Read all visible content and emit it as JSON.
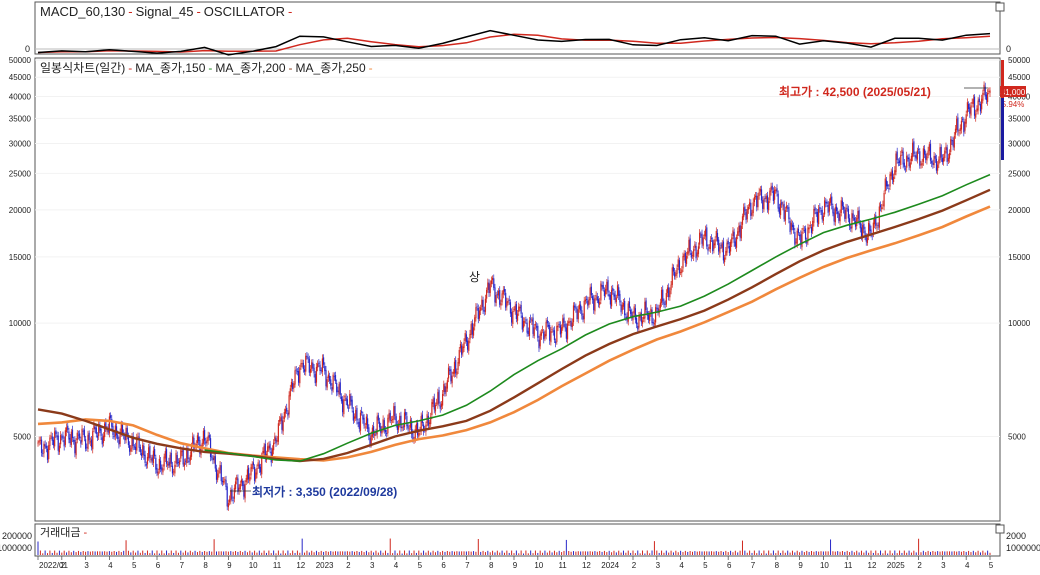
{
  "macd_panel": {
    "title_parts": [
      "MACD_60,130",
      "Signal_45",
      "OSCILLATOR"
    ],
    "zero_label": "0",
    "colors": {
      "macd": "#000000",
      "signal": "#d0281e"
    }
  },
  "price_panel": {
    "title_parts": [
      "일봉식차트(일간)",
      "MA_종가,150",
      "MA_종가,200",
      "MA_종가,250"
    ],
    "high_annotation": "최고가 : 42,500 (2025/05/21)",
    "low_annotation": "최저가 : 3,350 (2022/09/28)",
    "event_marker": "상",
    "current_price_label": "41,000",
    "change_label": "5.94%",
    "colors": {
      "up": "#d0281e",
      "down": "#2828c8",
      "ma150": "#1d8a1d",
      "ma200": "#8b3a1a",
      "ma250": "#f0883c",
      "high_text": "#d0281e",
      "low_text": "#1f3a9e"
    }
  },
  "volume_panel": {
    "title": "거래대금",
    "axis_labels": [
      "200000",
      "1000000"
    ],
    "right_axis_labels": [
      "2000",
      "1000000"
    ]
  },
  "chart_data": {
    "type": "line",
    "title": "일봉식차트(일간)",
    "y_scale": "log",
    "ylim": [
      3000,
      50000
    ],
    "y_ticks": [
      50000,
      45000,
      40000,
      35000,
      30000,
      25000,
      20000,
      15000,
      10000,
      5000
    ],
    "y_ticks_labeled": [
      5000,
      10000,
      15000,
      20000,
      25000,
      30000,
      35000,
      40000,
      45000,
      50000
    ],
    "x_tick_labels": [
      "2022/01",
      "2",
      "3",
      "4",
      "5",
      "6",
      "7",
      "8",
      "9",
      "10",
      "11",
      "12",
      "2023",
      "2",
      "3",
      "4",
      "5",
      "6",
      "7",
      "8",
      "9",
      "10",
      "11",
      "12",
      "2024",
      "2",
      "3",
      "4",
      "5",
      "6",
      "7",
      "8",
      "9",
      "10",
      "11",
      "12",
      "2025",
      "2",
      "3",
      "4",
      "5"
    ],
    "x": [
      "2022-01",
      "2022-02",
      "2022-03",
      "2022-04",
      "2022-05",
      "2022-06",
      "2022-07",
      "2022-08",
      "2022-09",
      "2022-10",
      "2022-11",
      "2022-12",
      "2023-01",
      "2023-02",
      "2023-03",
      "2023-04",
      "2023-05",
      "2023-06",
      "2023-07",
      "2023-08",
      "2023-09",
      "2023-10",
      "2023-11",
      "2023-12",
      "2024-01",
      "2024-02",
      "2024-03",
      "2024-04",
      "2024-05",
      "2024-06",
      "2024-07",
      "2024-08",
      "2024-09",
      "2024-10",
      "2024-11",
      "2024-12",
      "2025-01",
      "2025-02",
      "2025-03",
      "2025-04",
      "2025-05"
    ],
    "series": [
      {
        "name": "일봉식차트(일간)",
        "values": [
          4600,
          5000,
          4900,
          5300,
          4800,
          4200,
          4300,
          5000,
          3450,
          4000,
          4900,
          7800,
          7500,
          6100,
          5100,
          5600,
          5100,
          6500,
          9000,
          12600,
          10800,
          9400,
          9600,
          11300,
          12300,
          10300,
          10600,
          14500,
          16800,
          15600,
          21000,
          22000,
          16500,
          20500,
          19500,
          17000,
          26500,
          28000,
          27000,
          36000,
          41000
        ]
      },
      {
        "name": "MA_종가,150",
        "values": [
          null,
          null,
          null,
          null,
          null,
          null,
          null,
          4600,
          4520,
          4430,
          4330,
          4300,
          4500,
          4800,
          5100,
          5350,
          5500,
          5700,
          6050,
          6600,
          7300,
          7950,
          8550,
          9300,
          9950,
          10400,
          10700,
          11100,
          11800,
          12700,
          13800,
          15000,
          16200,
          17400,
          18200,
          18900,
          19700,
          20700,
          21800,
          23300,
          24800
        ]
      },
      {
        "name": "MA_종가,200",
        "values": [
          5900,
          5750,
          5500,
          5220,
          4960,
          4780,
          4650,
          4550,
          4500,
          4440,
          4360,
          4300,
          4360,
          4520,
          4750,
          5000,
          5180,
          5320,
          5500,
          5850,
          6350,
          6920,
          7550,
          8200,
          8800,
          9350,
          9800,
          10250,
          10800,
          11550,
          12450,
          13500,
          14600,
          15600,
          16450,
          17200,
          18000,
          18900,
          19900,
          21200,
          22600
        ]
      },
      {
        "name": "MA_종가,250",
        "values": [
          5400,
          5450,
          5550,
          5500,
          5350,
          5050,
          4800,
          4650,
          4520,
          4450,
          4400,
          4350,
          4320,
          4400,
          4550,
          4750,
          4920,
          5030,
          5200,
          5450,
          5800,
          6250,
          6800,
          7350,
          7950,
          8500,
          9050,
          9500,
          10050,
          10700,
          11400,
          12300,
          13200,
          14100,
          14900,
          15600,
          16300,
          17100,
          18000,
          19200,
          20400
        ]
      }
    ]
  }
}
